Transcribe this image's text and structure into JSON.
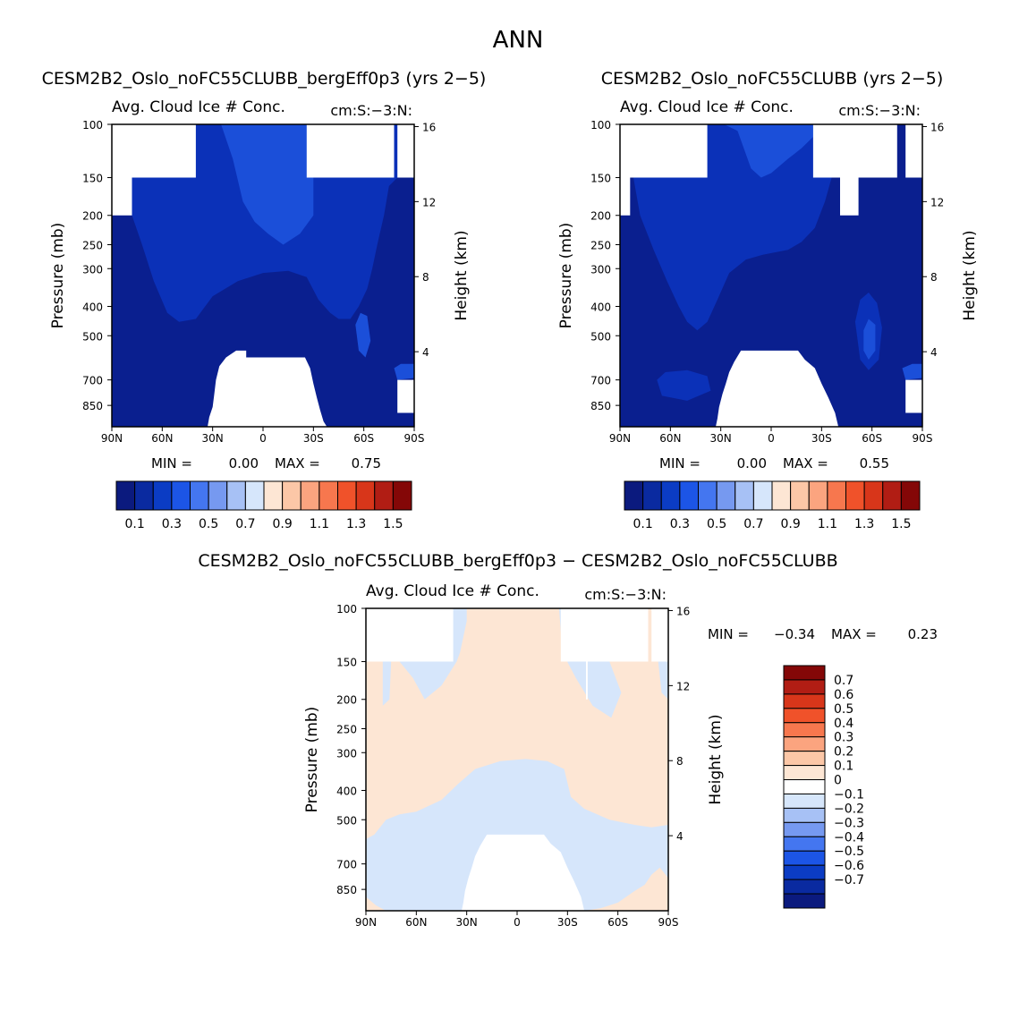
{
  "figure": {
    "title": "ANN"
  },
  "chart_data": [
    {
      "type": "contour",
      "title": "CESM2B2_Oslo_noFC55CLUBB_bergEff0p3 (yrs 2−5)",
      "left_subtitle": "Avg. Cloud Ice # Conc.",
      "right_subtitle": "cm:S:−3:N:",
      "xlabel": "",
      "ylabel": "Pressure (mb)",
      "y2label": "Height (km)",
      "xticks": [
        "90N",
        "60N",
        "30N",
        "0",
        "30S",
        "60S",
        "90S"
      ],
      "x_values": [
        -90,
        -60,
        -30,
        0,
        30,
        60,
        90
      ],
      "yticks": [
        "100",
        "150",
        "200",
        "250",
        "300",
        "400",
        "500",
        "700",
        "850"
      ],
      "y_values": [
        100,
        150,
        200,
        250,
        300,
        400,
        500,
        700,
        850
      ],
      "y2ticks": [
        "4",
        "8",
        "12",
        "16"
      ],
      "y2_values": [
        4,
        8,
        12,
        16
      ],
      "ylim": [
        100,
        1000
      ],
      "stats": {
        "min_label": "MIN =",
        "min": "0.00",
        "max_label": "MAX =",
        "max": "0.75"
      },
      "colorbar": {
        "orientation": "horizontal",
        "colors": [
          "#0b1a7e",
          "#0a2aa0",
          "#0b3cc4",
          "#1c55e6",
          "#4476f0",
          "#7699f0",
          "#a7c1f5",
          "#d6e6fb",
          "#fde6d4",
          "#fcc7a7",
          "#fba47f",
          "#f7774e",
          "#f0522a",
          "#d8361a",
          "#b11d14",
          "#840707"
        ],
        "labels": [
          "0.1",
          "0.3",
          "0.5",
          "0.7",
          "0.9",
          "1.1",
          "1.3",
          "1.5"
        ]
      }
    },
    {
      "type": "contour",
      "title": "CESM2B2_Oslo_noFC55CLUBB (yrs 2−5)",
      "left_subtitle": "Avg. Cloud Ice # Conc.",
      "right_subtitle": "cm:S:−3:N:",
      "xlabel": "",
      "ylabel": "Pressure (mb)",
      "y2label": "Height (km)",
      "xticks": [
        "90N",
        "60N",
        "30N",
        "0",
        "30S",
        "60S",
        "90S"
      ],
      "x_values": [
        -90,
        -60,
        -30,
        0,
        30,
        60,
        90
      ],
      "yticks": [
        "100",
        "150",
        "200",
        "250",
        "300",
        "400",
        "500",
        "700",
        "850"
      ],
      "y_values": [
        100,
        150,
        200,
        250,
        300,
        400,
        500,
        700,
        850
      ],
      "y2ticks": [
        "4",
        "8",
        "12",
        "16"
      ],
      "y2_values": [
        4,
        8,
        12,
        16
      ],
      "ylim": [
        100,
        1000
      ],
      "stats": {
        "min_label": "MIN =",
        "min": "0.00",
        "max_label": "MAX =",
        "max": "0.55"
      },
      "colorbar": {
        "orientation": "horizontal",
        "colors": [
          "#0b1a7e",
          "#0a2aa0",
          "#0b3cc4",
          "#1c55e6",
          "#4476f0",
          "#7699f0",
          "#a7c1f5",
          "#d6e6fb",
          "#fde6d4",
          "#fcc7a7",
          "#fba47f",
          "#f7774e",
          "#f0522a",
          "#d8361a",
          "#b11d14",
          "#840707"
        ],
        "labels": [
          "0.1",
          "0.3",
          "0.5",
          "0.7",
          "0.9",
          "1.1",
          "1.3",
          "1.5"
        ]
      }
    },
    {
      "type": "contour",
      "title": "CESM2B2_Oslo_noFC55CLUBB_bergEff0p3 − CESM2B2_Oslo_noFC55CLUBB",
      "left_subtitle": "Avg. Cloud Ice # Conc.",
      "right_subtitle": "cm:S:−3:N:",
      "xlabel": "",
      "ylabel": "Pressure (mb)",
      "y2label": "Height (km)",
      "xticks": [
        "90N",
        "60N",
        "30N",
        "0",
        "30S",
        "60S",
        "90S"
      ],
      "x_values": [
        -90,
        -60,
        -30,
        0,
        30,
        60,
        90
      ],
      "yticks": [
        "100",
        "150",
        "200",
        "250",
        "300",
        "400",
        "500",
        "700",
        "850"
      ],
      "y_values": [
        100,
        150,
        200,
        250,
        300,
        400,
        500,
        700,
        850
      ],
      "y2ticks": [
        "4",
        "8",
        "12",
        "16"
      ],
      "y2_values": [
        4,
        8,
        12,
        16
      ],
      "ylim": [
        100,
        1000
      ],
      "stats": {
        "min_label": "MIN =",
        "min": "−0.34",
        "max_label": "MAX =",
        "max": "0.23"
      },
      "colorbar": {
        "orientation": "vertical",
        "colors": [
          "#840707",
          "#b11d14",
          "#d8361a",
          "#f0522a",
          "#f7774e",
          "#fba47f",
          "#fcc7a7",
          "#fde6d4",
          "#ffffff",
          "#d6e6fb",
          "#a7c1f5",
          "#7699f0",
          "#4476f0",
          "#1c55e6",
          "#0b3cc4",
          "#0a2aa0",
          "#0b1a7e"
        ],
        "labels": [
          "0.7",
          "0.6",
          "0.5",
          "0.4",
          "0.3",
          "0.2",
          "0.1",
          "0",
          "−0.1",
          "−0.2",
          "−0.3",
          "−0.4",
          "−0.5",
          "−0.6",
          "−0.7"
        ]
      }
    }
  ]
}
